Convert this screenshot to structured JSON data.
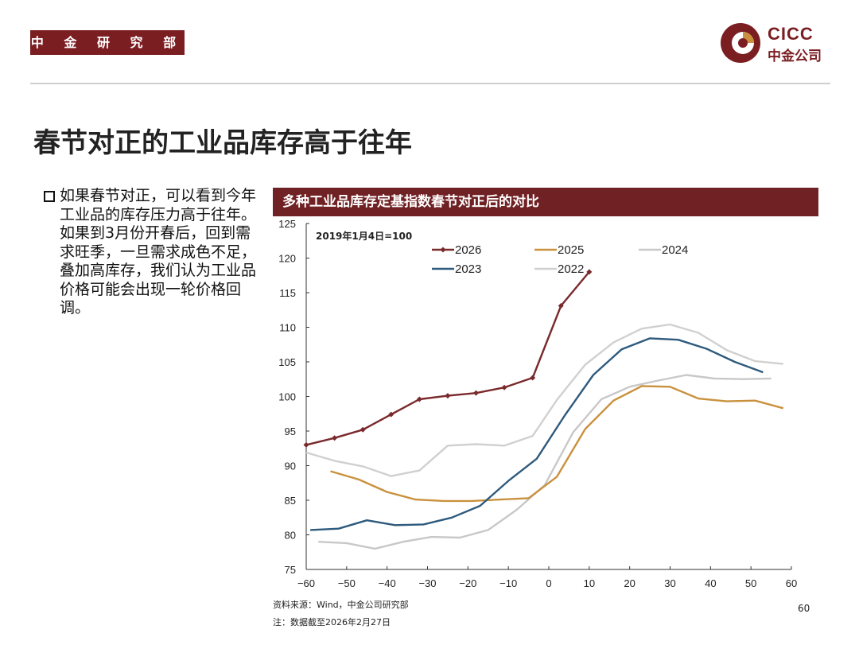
{
  "header": {
    "department": "中 金 研 究 部"
  },
  "logo": {
    "text_en": "CICC",
    "text_cn": "中金公司"
  },
  "page_title": "春节对正的工业品库存高于往年",
  "bullet_text": "如果春节对正，可以看到今年工业品的库存压力高于往年。如果到3月份开春后，回到需求旺季，一旦需求成色不足，叠加高库存，我们认为工业品价格可能会出现一轮价格回调。",
  "chart_header": "多种工业品库存定基指数春节对正后的对比",
  "footer": {
    "source": "资料来源：Wind，中金公司研究部",
    "note": "注：数据截至2026年2月27日",
    "page_number": "60"
  },
  "colors": {
    "brand": "#7b1e22",
    "c2026": "#7a2a2c",
    "c2025": "#c9913d",
    "c2024": "#c8c8c8",
    "c2023": "#2e5a7d",
    "c2022": "#d0d0d0"
  },
  "chart_data": {
    "type": "line",
    "title": "多种工业品库存定基指数春节对正后的对比",
    "annotation": "2019年1月4日=100",
    "xlim": [
      -60,
      60
    ],
    "ylim": [
      75,
      125
    ],
    "xticks": [
      -60,
      -50,
      -40,
      -30,
      -20,
      -10,
      0,
      10,
      20,
      30,
      40,
      50,
      60
    ],
    "yticks": [
      75,
      80,
      85,
      90,
      95,
      100,
      105,
      110,
      115,
      120,
      125
    ],
    "series": [
      {
        "name": "2026",
        "color": "#7a2a2c",
        "marker": true,
        "x": [
          -60,
          -53,
          -46,
          -39,
          -32,
          -25,
          -18,
          -11,
          -4,
          3,
          10
        ],
        "y": [
          93.0,
          94.0,
          95.2,
          97.4,
          99.6,
          100.1,
          100.5,
          101.3,
          102.7,
          113.1,
          118.0
        ]
      },
      {
        "name": "2025",
        "color": "#c9913d",
        "marker": false,
        "x": [
          -54,
          -47,
          -40,
          -33,
          -26,
          -19,
          -12,
          -5,
          2,
          9,
          16,
          23,
          30,
          37,
          44,
          51,
          58
        ],
        "y": [
          89.2,
          88.0,
          86.2,
          85.1,
          84.9,
          84.9,
          85.1,
          85.3,
          88.4,
          95.3,
          99.4,
          101.5,
          101.4,
          99.7,
          99.3,
          99.4,
          98.3
        ]
      },
      {
        "name": "2024",
        "color": "#c8c8c8",
        "marker": false,
        "x": [
          -57,
          -50,
          -43,
          -36,
          -29,
          -22,
          -15,
          -8,
          -1,
          6,
          13,
          20,
          27,
          34,
          41,
          48,
          55
        ],
        "y": [
          79.0,
          78.8,
          78.0,
          79.0,
          79.7,
          79.6,
          80.7,
          83.6,
          87.2,
          94.8,
          99.6,
          101.4,
          102.3,
          103.1,
          102.6,
          102.5,
          102.6
        ]
      },
      {
        "name": "2023",
        "color": "#2e5a7d",
        "marker": false,
        "x": [
          -59,
          -52,
          -45,
          -38,
          -31,
          -24,
          -17,
          -10,
          -3,
          4,
          11,
          18,
          25,
          32,
          39,
          46,
          53
        ],
        "y": [
          80.7,
          80.9,
          82.1,
          81.4,
          81.5,
          82.5,
          84.2,
          87.8,
          91.0,
          97.3,
          103.1,
          106.8,
          108.4,
          108.2,
          106.9,
          105.0,
          103.5
        ]
      },
      {
        "name": "2022",
        "color": "#d0d0d0",
        "marker": false,
        "x": [
          -60,
          -53,
          -46,
          -39,
          -32,
          -25,
          -18,
          -11,
          -4,
          2,
          9,
          16,
          23,
          30,
          37,
          44,
          51,
          58
        ],
        "y": [
          91.9,
          90.7,
          89.9,
          88.5,
          89.3,
          92.9,
          93.1,
          92.9,
          94.3,
          99.5,
          104.6,
          107.8,
          109.8,
          110.4,
          109.2,
          106.7,
          105.1,
          104.7
        ]
      }
    ]
  }
}
